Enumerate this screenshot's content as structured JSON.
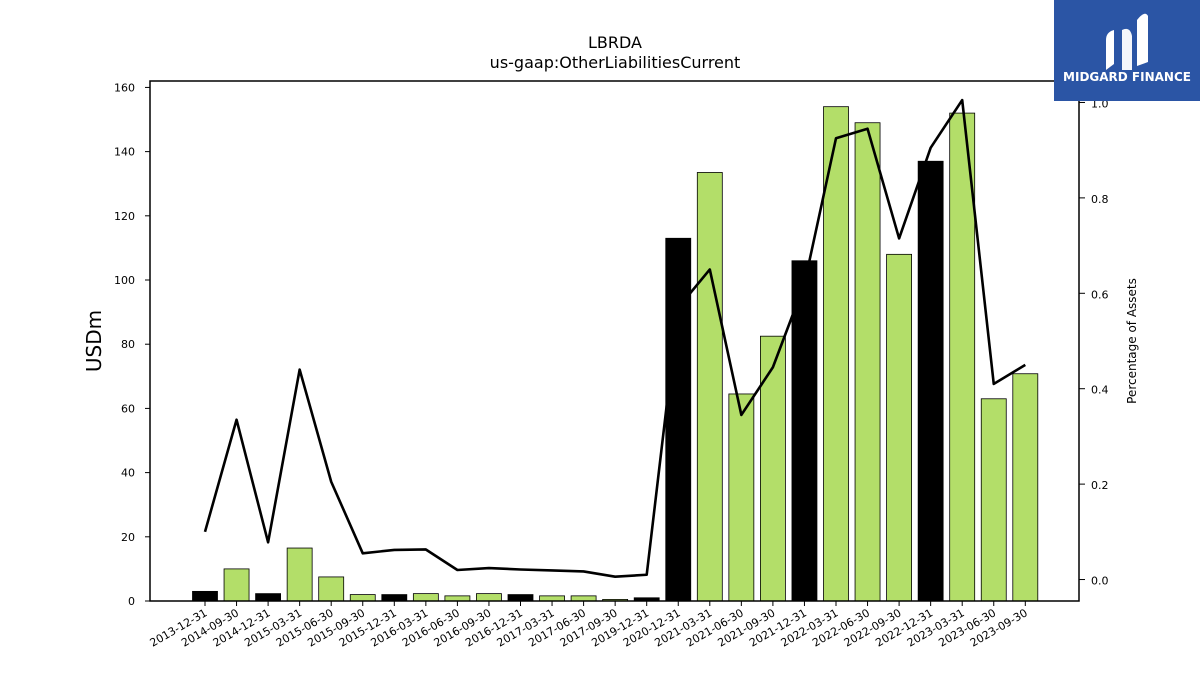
{
  "chart_data": {
    "type": "bar",
    "title": "LBRDA",
    "subtitle": "us-gaap:OtherLiabilitiesCurrent",
    "ylabel": "USDm",
    "y2label": "Percentage of Assets",
    "categories": [
      "2013-12-31",
      "2014-09-30",
      "2014-12-31",
      "2015-03-31",
      "2015-06-30",
      "2015-09-30",
      "2015-12-31",
      "2016-03-31",
      "2016-06-30",
      "2016-09-30",
      "2016-12-31",
      "2017-03-31",
      "2017-06-30",
      "2017-09-30",
      "2019-12-31",
      "2020-12-31",
      "2021-03-31",
      "2021-06-30",
      "2021-09-30",
      "2021-12-31",
      "2022-03-31",
      "2022-06-30",
      "2022-09-30",
      "2022-12-31",
      "2023-03-31",
      "2023-06-30",
      "2023-09-30"
    ],
    "series": [
      {
        "values": [
          3.0,
          10.0,
          2.3,
          16.5,
          7.5,
          2.0,
          2.0,
          2.3,
          1.6,
          2.3,
          2.0,
          1.6,
          1.6,
          0.5,
          1.0,
          113.0,
          133.5,
          64.5,
          82.5,
          106.0,
          154.0,
          149.0,
          108.0,
          137.0,
          152.0,
          63.0,
          70.8
        ],
        "colors": [
          "#000000",
          "#b3de69",
          "#000000",
          "#b3de69",
          "#b3de69",
          "#b3de69",
          "#000000",
          "#b3de69",
          "#b3de69",
          "#b3de69",
          "#000000",
          "#b3de69",
          "#b3de69",
          "#b3de69",
          "#000000",
          "#000000",
          "#b3de69",
          "#b3de69",
          "#b3de69",
          "#000000",
          "#b3de69",
          "#b3de69",
          "#b3de69",
          "#000000",
          "#b3de69",
          "#b3de69",
          "#b3de69"
        ]
      },
      {
        "type": "line",
        "axis": "right",
        "values": [
          0.1,
          0.335,
          0.078,
          0.44,
          0.205,
          0.055,
          0.062,
          0.063,
          0.02,
          0.024,
          0.021,
          0.019,
          0.017,
          0.006,
          0.01,
          0.57,
          0.65,
          0.345,
          0.445,
          0.62,
          0.925,
          0.945,
          0.715,
          0.905,
          1.005,
          0.41,
          0.45
        ],
        "color": "#000000"
      }
    ],
    "ylim": [
      0,
      162
    ],
    "yticks": [
      "0",
      "20",
      "40",
      "60",
      "80",
      "100",
      "120",
      "140",
      "160"
    ],
    "y2lim": [
      -0.045,
      1.045
    ],
    "y2ticks": [
      "0.0",
      "0.2",
      "0.4",
      "0.6",
      "0.8",
      "1.0"
    ],
    "grid": false
  },
  "logo": {
    "text": "MIDGARD FINANCE",
    "background": "#2b55a5"
  }
}
